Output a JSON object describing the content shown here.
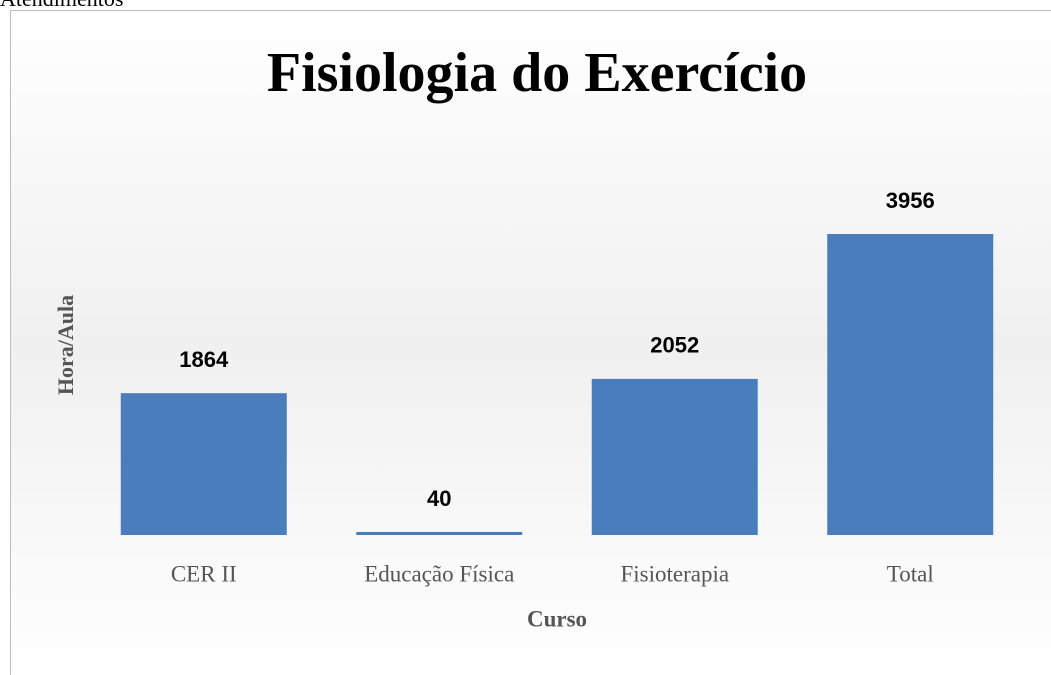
{
  "header": {
    "title": "Atendimentos"
  },
  "chart_data": {
    "type": "bar",
    "title": "Fisiologia do Exercício",
    "xlabel": "Curso",
    "ylabel": "Hora/Aula",
    "categories": [
      "CER II",
      "Educação Física",
      "Fisioterapia",
      "Total"
    ],
    "values": [
      1864,
      40,
      2052,
      3956
    ],
    "color": "#4a7dbb"
  }
}
